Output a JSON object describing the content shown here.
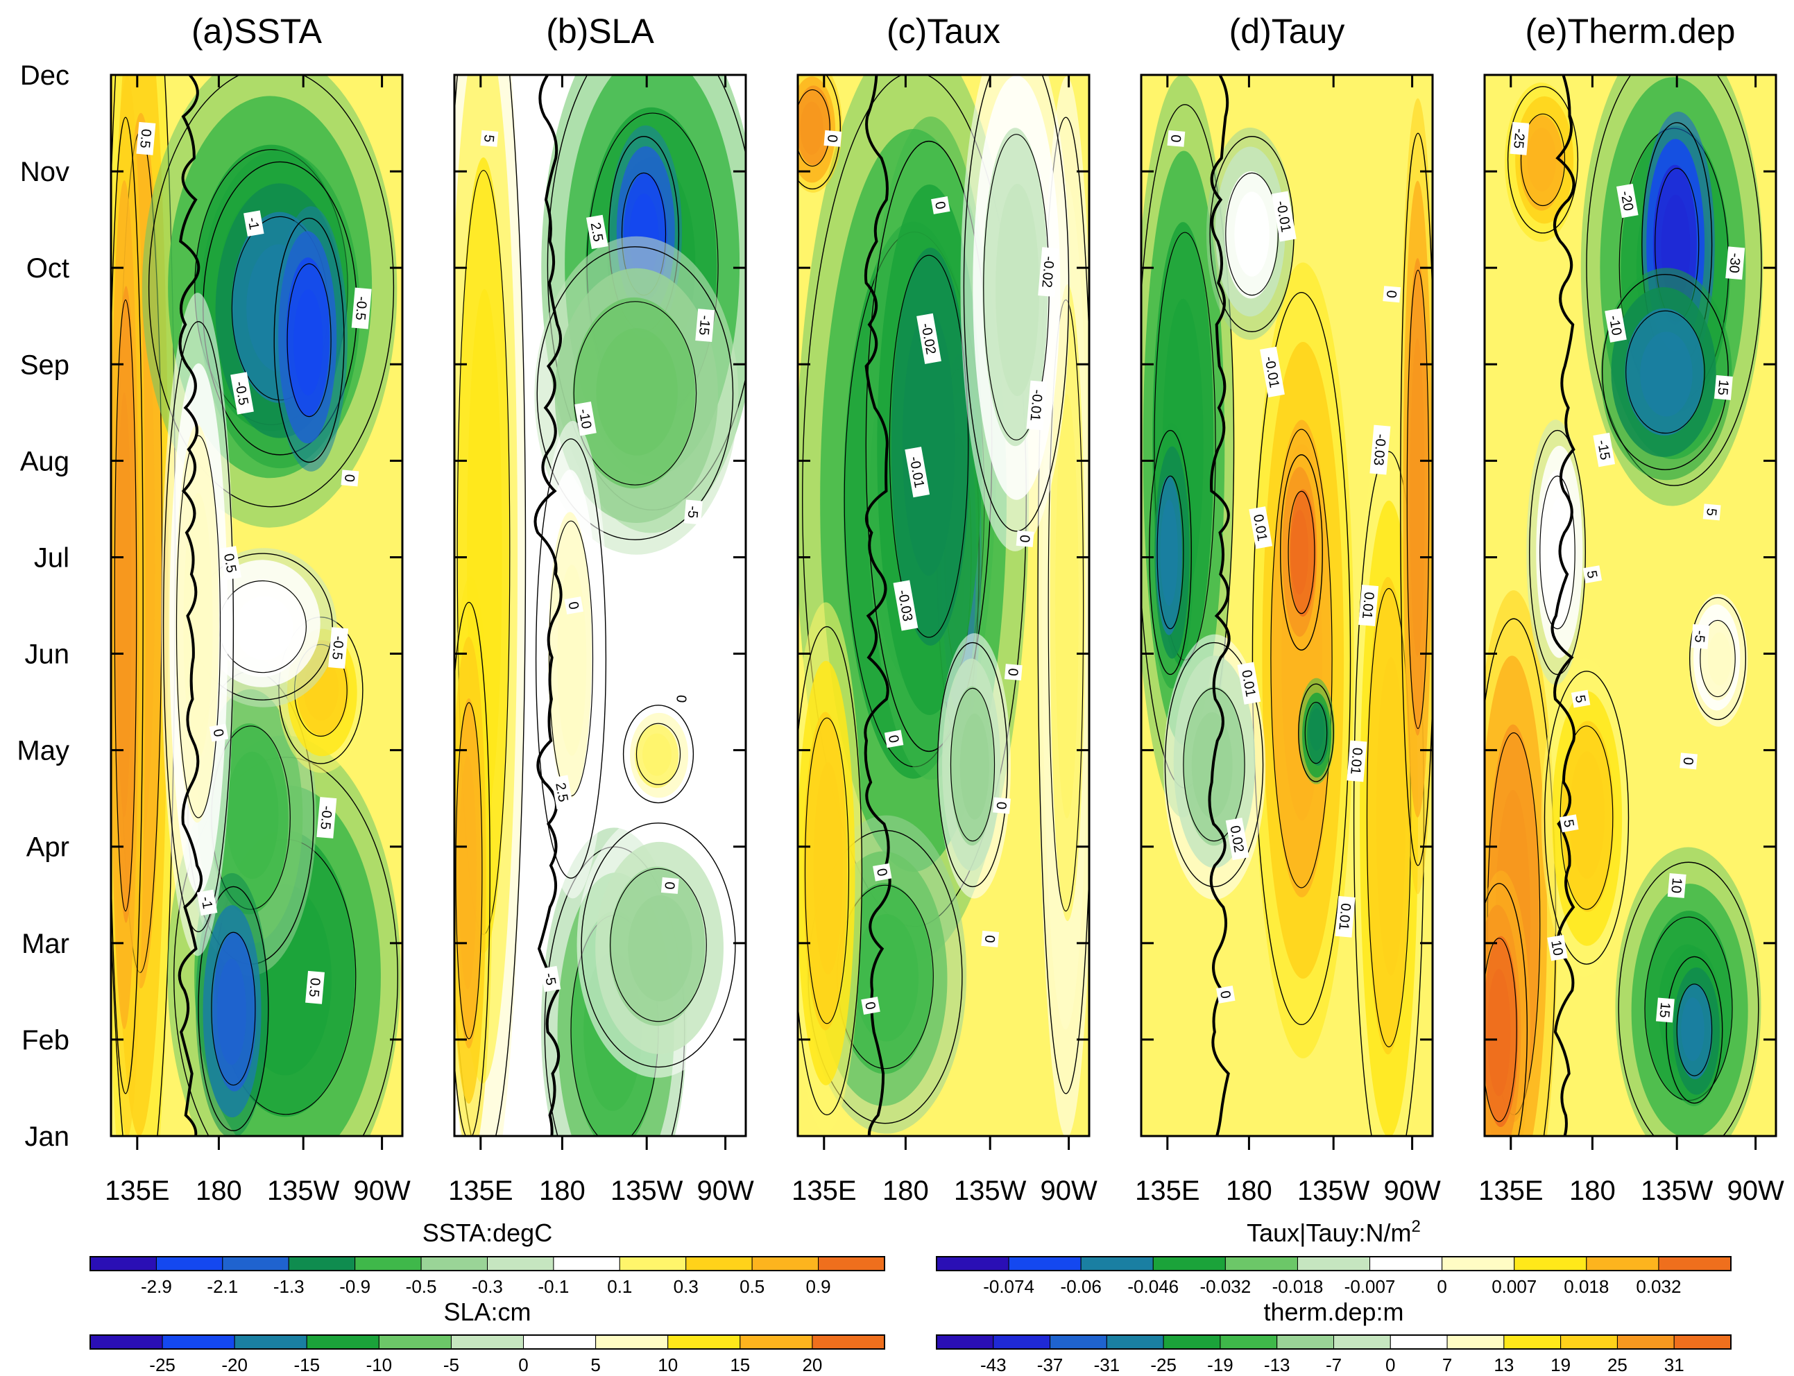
{
  "chart_data": {
    "type": "heatmap",
    "description_units": "Hovmoller panels: longitude (x) vs month (y)",
    "y_axis": {
      "labels": [
        "Jan",
        "Feb",
        "Mar",
        "Apr",
        "May",
        "Jun",
        "Jul",
        "Aug",
        "Sep",
        "Oct",
        "Nov",
        "Dec"
      ]
    },
    "x_axis": {
      "labels": [
        "135E",
        "180",
        "135W",
        "90W"
      ]
    },
    "panels": [
      {
        "title": "(a)SSTA",
        "scheme": "ssta",
        "contour_labels": [
          "0.5",
          "-1",
          "-0.5",
          "-0.5",
          "0",
          "0.5",
          "-0.5",
          "0",
          "-0.5",
          "-1",
          "0.5"
        ]
      },
      {
        "title": "(b)SLA",
        "scheme": "sla",
        "contour_labels": [
          "5",
          "2.5",
          "-15",
          "-10",
          "-5",
          "0",
          "0",
          "2.5",
          "0",
          "-5"
        ]
      },
      {
        "title": "(c)Taux",
        "scheme": "taux",
        "contour_labels": [
          "0",
          "0",
          "-0.02",
          "-0.02",
          "-0.01",
          "-0.01",
          "0",
          "-0.03",
          "0",
          "0",
          "0",
          "0",
          "0",
          "0"
        ]
      },
      {
        "title": "(d)Tauy",
        "scheme": "tauy",
        "contour_labels": [
          "0",
          "-0.01",
          "0",
          "-0.01",
          "-0.03",
          "0.01",
          "0.01",
          "0.01",
          "0.01",
          "0.02",
          "0.01",
          "0"
        ]
      },
      {
        "title": "(e)Therm.dep",
        "scheme": "therm",
        "contour_labels": [
          "-25",
          "-20",
          "-30",
          "-10",
          "15",
          "-15",
          "5",
          "5",
          "-5",
          "5",
          "0",
          "5",
          "10",
          "10",
          "15"
        ]
      }
    ],
    "colorbars": [
      {
        "title": "SSTA:degC",
        "scheme": "ssta",
        "ticks": [
          "-2.9",
          "-2.1",
          "-1.3",
          "-0.9",
          "-0.5",
          "-0.3",
          "-0.1",
          "0.1",
          "0.3",
          "0.5",
          "0.9"
        ]
      },
      {
        "title": "SLA:cm",
        "scheme": "sla",
        "ticks": [
          "-25",
          "-20",
          "-15",
          "-10",
          "-5",
          "0",
          "5",
          "10",
          "15",
          "20"
        ]
      },
      {
        "title_main": "Taux|Tauy:N/m",
        "title_sup": "2",
        "scheme": "taux",
        "ticks": [
          "-0.074",
          "-0.06",
          "-0.046",
          "-0.032",
          "-0.018",
          "-0.007",
          "0",
          "0.007",
          "0.018",
          "0.032"
        ]
      },
      {
        "title": "therm.dep:m",
        "scheme": "therm",
        "ticks": [
          "-43",
          "-37",
          "-31",
          "-25",
          "-19",
          "-13",
          "-7",
          "0",
          "7",
          "13",
          "19",
          "25",
          "31"
        ]
      }
    ],
    "palette": [
      "#2a0fb5",
      "#1f29d6",
      "#1448f0",
      "#1f63cf",
      "#1a7fa2",
      "#0f8c4f",
      "#1ba33a",
      "#3fb84a",
      "#6cc768",
      "#9ad497",
      "#c6e6c0",
      "#ffffff",
      "#ffffff",
      "#fffcc4",
      "#fff56b",
      "#ffe81a",
      "#ffd21a",
      "#fdb41e",
      "#f7981f",
      "#ef6f1d"
    ]
  }
}
